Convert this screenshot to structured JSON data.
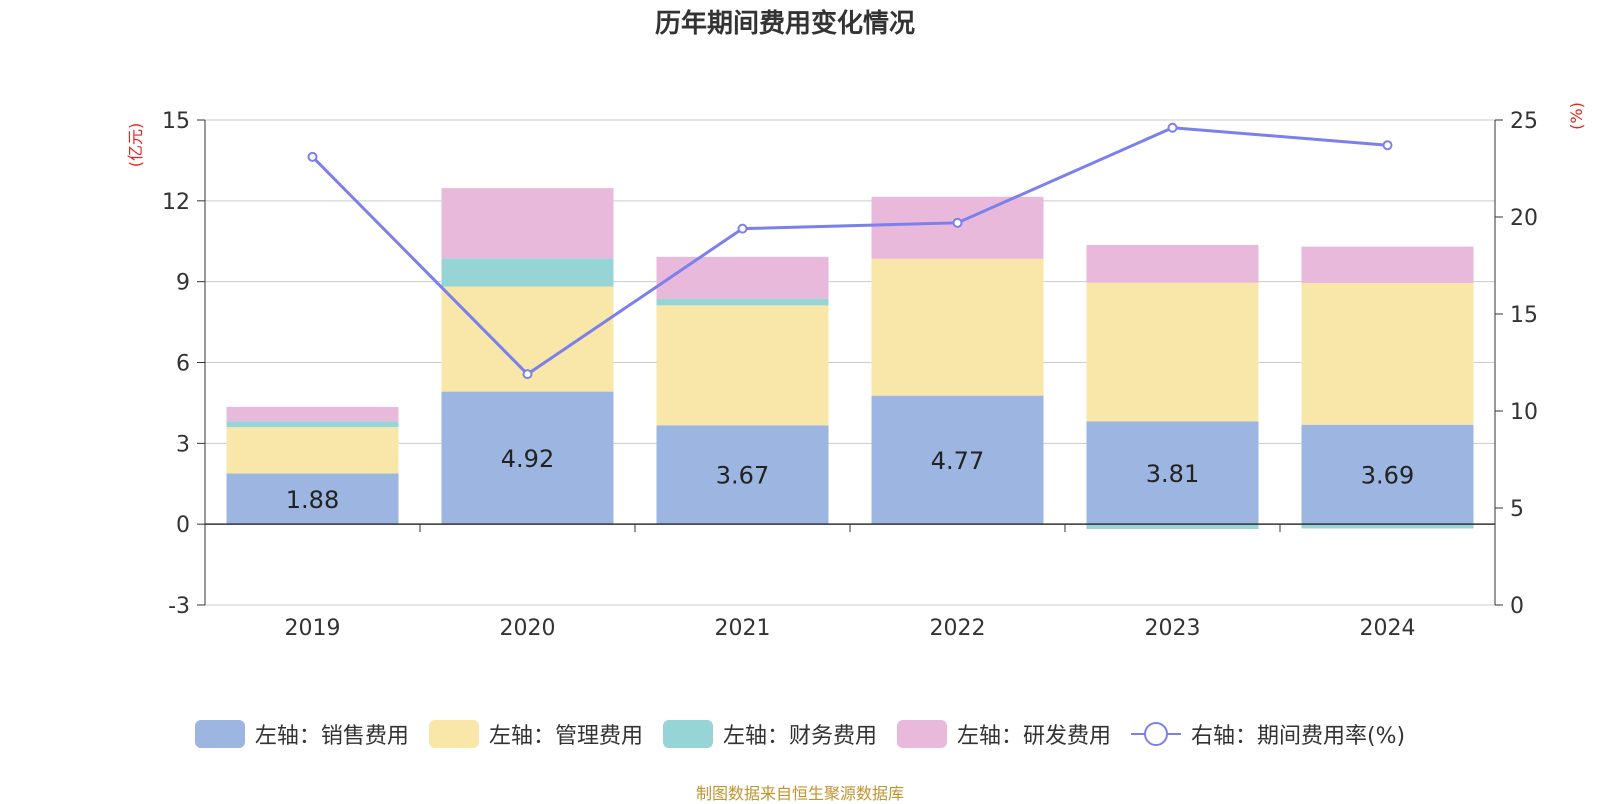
{
  "chart_data": {
    "type": "bar",
    "stacked": true,
    "title": "历年期间费用变化情况",
    "categories": [
      "2019",
      "2020",
      "2021",
      "2022",
      "2023",
      "2024"
    ],
    "y_left": {
      "label": "(亿元)",
      "min": -3,
      "max": 15,
      "ticks": [
        -3,
        0,
        3,
        6,
        9,
        12,
        15
      ]
    },
    "y_right": {
      "label": "(%)",
      "min": 0,
      "max": 25,
      "ticks": [
        0,
        5,
        10,
        15,
        20,
        25
      ]
    },
    "series": [
      {
        "name": "左轴：销售费用",
        "axis": "left",
        "color": "#9cb6e1",
        "values": [
          1.88,
          4.92,
          3.67,
          4.77,
          3.81,
          3.69
        ],
        "labels": [
          "1.88",
          "4.92",
          "3.67",
          "4.77",
          "3.81",
          "3.69"
        ]
      },
      {
        "name": "左轴：管理费用",
        "axis": "left",
        "color": "#f8e7a9",
        "values": [
          1.72,
          3.9,
          4.45,
          5.08,
          5.15,
          5.26
        ]
      },
      {
        "name": "左轴：财务费用",
        "axis": "left",
        "color": "#96d4d5",
        "values": [
          0.22,
          1.05,
          0.25,
          0.0,
          -0.18,
          -0.16
        ]
      },
      {
        "name": "左轴：研发费用",
        "axis": "left",
        "color": "#e8b9da",
        "values": [
          0.53,
          2.6,
          1.55,
          2.3,
          1.4,
          1.35
        ]
      },
      {
        "name": "右轴：期间费用率(%)",
        "axis": "right",
        "type": "line",
        "color": "#7b80ec",
        "values": [
          23.1,
          11.9,
          19.4,
          19.7,
          24.6,
          23.7
        ]
      }
    ],
    "grid": true,
    "legend_position": "bottom"
  },
  "source": "制图数据来自恒生聚源数据库"
}
